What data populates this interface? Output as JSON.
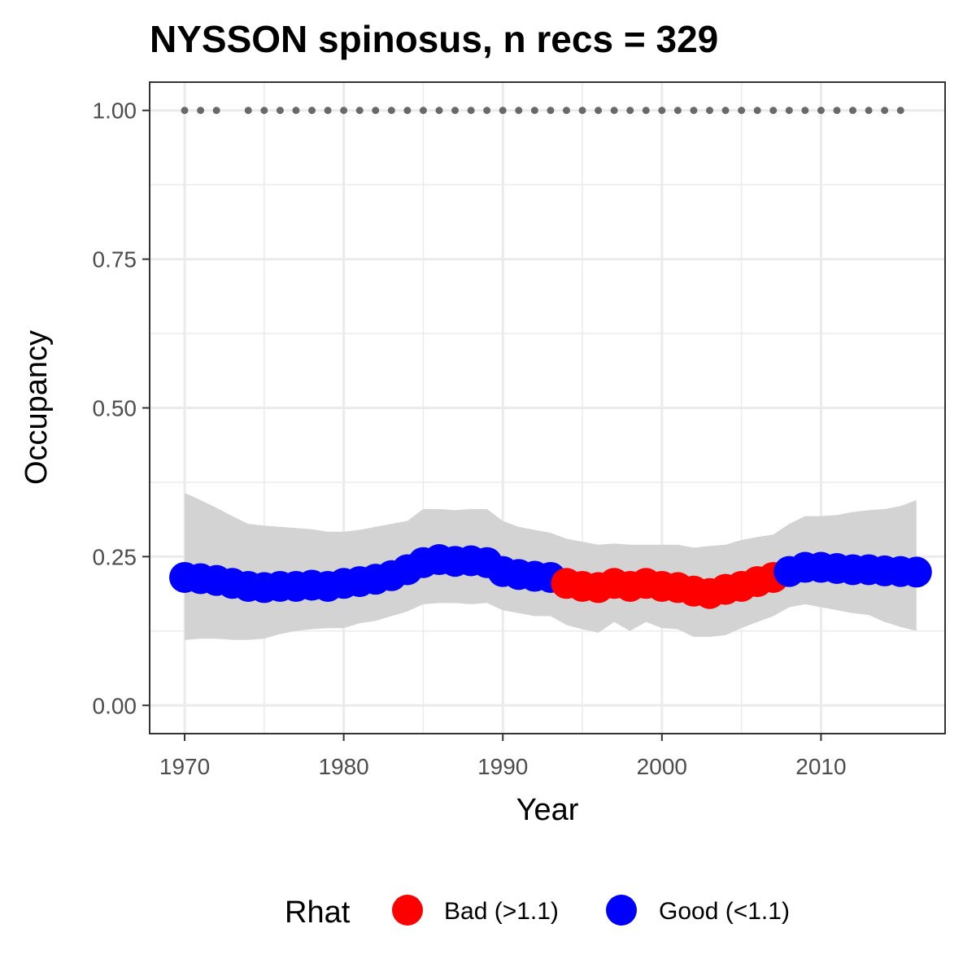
{
  "chart_data": {
    "type": "line",
    "title": "NYSSON spinosus, n recs = 329",
    "xlabel": "Year",
    "ylabel": "Occupancy",
    "xlim": [
      1967.8,
      2017.8
    ],
    "ylim": [
      -0.0475,
      1.0475
    ],
    "x_ticks": [
      1970,
      1980,
      1990,
      2000,
      2010
    ],
    "x_tick_labels": [
      "1970",
      "1980",
      "1990",
      "2000",
      "2010"
    ],
    "y_ticks": [
      0.0,
      0.25,
      0.5,
      0.75,
      1.0
    ],
    "y_tick_labels": [
      "0.00",
      "0.25",
      "0.50",
      "0.75",
      "1.00"
    ],
    "grid": true,
    "legend": {
      "title": "Rhat",
      "position": "bottom",
      "entries": [
        {
          "label": "Bad (>1.1)",
          "color": "#ff0000"
        },
        {
          "label": "Good (<1.1)",
          "color": "#0000ff"
        }
      ]
    },
    "colors": {
      "bad": "#ff0000",
      "good": "#0000ff",
      "ribbon": "#d3d3d3",
      "records": "#696969"
    },
    "series": [
      {
        "name": "Occupancy",
        "x": [
          1970,
          1971,
          1972,
          1973,
          1974,
          1975,
          1976,
          1977,
          1978,
          1979,
          1980,
          1981,
          1982,
          1983,
          1984,
          1985,
          1986,
          1987,
          1988,
          1989,
          1990,
          1991,
          1992,
          1993,
          1994,
          1995,
          1996,
          1997,
          1998,
          1999,
          2000,
          2001,
          2002,
          2003,
          2004,
          2005,
          2006,
          2007,
          2008,
          2009,
          2010,
          2011,
          2012,
          2013,
          2014,
          2015,
          2016
        ],
        "y": [
          0.215,
          0.213,
          0.21,
          0.205,
          0.2,
          0.198,
          0.2,
          0.2,
          0.202,
          0.2,
          0.205,
          0.208,
          0.212,
          0.218,
          0.228,
          0.24,
          0.245,
          0.242,
          0.243,
          0.24,
          0.225,
          0.22,
          0.217,
          0.215,
          0.205,
          0.2,
          0.198,
          0.205,
          0.2,
          0.205,
          0.2,
          0.198,
          0.192,
          0.188,
          0.195,
          0.2,
          0.208,
          0.215,
          0.225,
          0.232,
          0.232,
          0.23,
          0.228,
          0.228,
          0.226,
          0.225,
          0.224
        ],
        "rhat": [
          "good",
          "good",
          "good",
          "good",
          "good",
          "good",
          "good",
          "good",
          "good",
          "good",
          "good",
          "good",
          "good",
          "good",
          "good",
          "good",
          "good",
          "good",
          "good",
          "good",
          "good",
          "good",
          "good",
          "good",
          "bad",
          "bad",
          "bad",
          "bad",
          "bad",
          "bad",
          "bad",
          "bad",
          "bad",
          "bad",
          "bad",
          "bad",
          "bad",
          "bad",
          "good",
          "good",
          "good",
          "good",
          "good",
          "good",
          "good",
          "good",
          "good"
        ],
        "lower": [
          0.11,
          0.112,
          0.112,
          0.11,
          0.11,
          0.112,
          0.12,
          0.125,
          0.128,
          0.13,
          0.13,
          0.138,
          0.142,
          0.15,
          0.158,
          0.17,
          0.172,
          0.172,
          0.17,
          0.172,
          0.16,
          0.155,
          0.15,
          0.15,
          0.135,
          0.128,
          0.122,
          0.14,
          0.125,
          0.14,
          0.13,
          0.128,
          0.115,
          0.115,
          0.118,
          0.13,
          0.14,
          0.15,
          0.165,
          0.17,
          0.165,
          0.16,
          0.155,
          0.152,
          0.14,
          0.132,
          0.125
        ],
        "upper": [
          0.357,
          0.345,
          0.332,
          0.318,
          0.305,
          0.302,
          0.3,
          0.298,
          0.296,
          0.292,
          0.292,
          0.295,
          0.3,
          0.305,
          0.31,
          0.33,
          0.33,
          0.328,
          0.33,
          0.33,
          0.31,
          0.3,
          0.295,
          0.29,
          0.28,
          0.275,
          0.27,
          0.272,
          0.27,
          0.27,
          0.27,
          0.27,
          0.265,
          0.268,
          0.27,
          0.278,
          0.283,
          0.287,
          0.305,
          0.318,
          0.318,
          0.32,
          0.325,
          0.328,
          0.33,
          0.335,
          0.345
        ]
      },
      {
        "name": "Records",
        "type": "scatter",
        "x": [
          1970,
          1971,
          1972,
          1974,
          1975,
          1976,
          1977,
          1978,
          1979,
          1980,
          1981,
          1982,
          1983,
          1984,
          1985,
          1986,
          1987,
          1988,
          1989,
          1990,
          1991,
          1992,
          1993,
          1994,
          1995,
          1996,
          1997,
          1998,
          1999,
          2000,
          2001,
          2002,
          2003,
          2004,
          2005,
          2006,
          2007,
          2008,
          2009,
          2010,
          2011,
          2012,
          2013,
          2014,
          2015
        ],
        "y": [
          1,
          1,
          1,
          1,
          1,
          1,
          1,
          1,
          1,
          1,
          1,
          1,
          1,
          1,
          1,
          1,
          1,
          1,
          1,
          1,
          1,
          1,
          1,
          1,
          1,
          1,
          1,
          1,
          1,
          1,
          1,
          1,
          1,
          1,
          1,
          1,
          1,
          1,
          1,
          1,
          1,
          1,
          1,
          1,
          1
        ]
      }
    ]
  }
}
